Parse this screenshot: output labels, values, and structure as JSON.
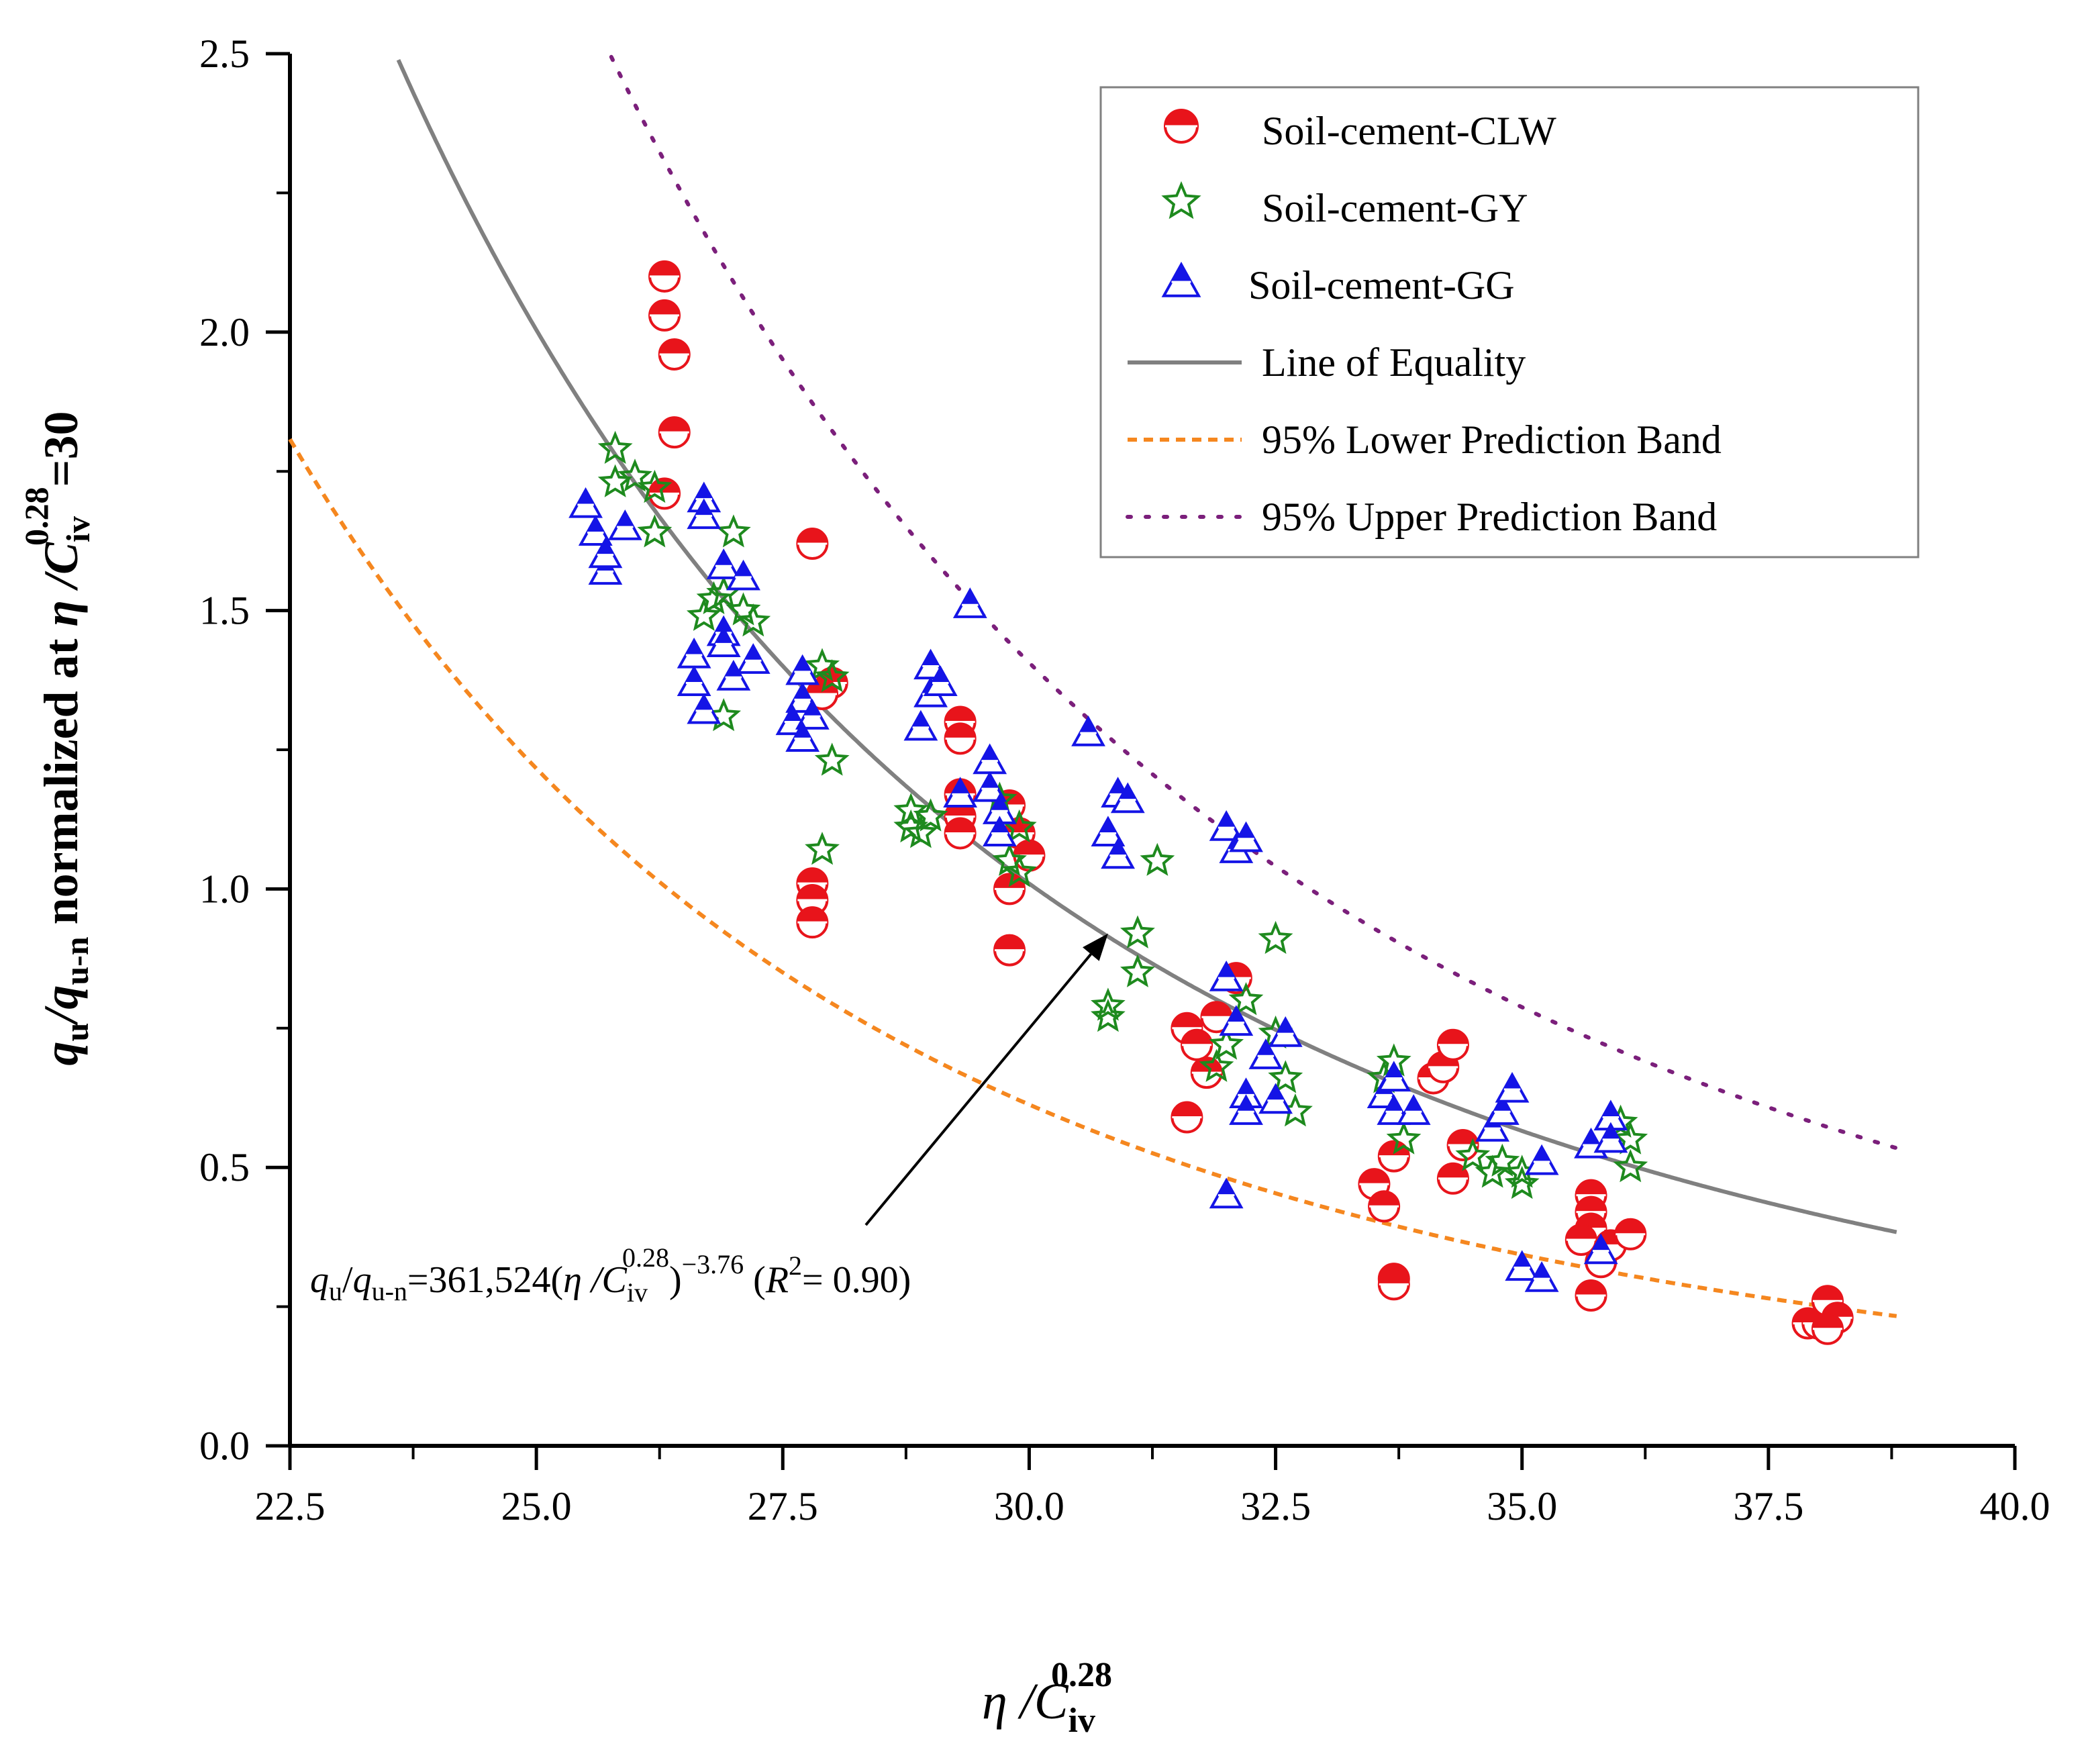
{
  "chart_data": {
    "type": "scatter",
    "xlabel": {
      "base": "η /C",
      "sub": "iv",
      "sup": "0.28"
    },
    "ylabel": {
      "q": "q",
      "q_sub": "u",
      "slash": "/",
      "q2": "q",
      "q2_sub": "u-n",
      "mid": " normalized at ",
      "eta": "η /C",
      "c_sub": "iv",
      "c_sup": "0.28",
      "tail": "=30"
    },
    "xlim": [
      22.5,
      40.0
    ],
    "ylim": [
      0.0,
      2.5
    ],
    "xticks": [
      "22.5",
      "25.0",
      "27.5",
      "30.0",
      "32.5",
      "35.0",
      "37.5",
      "40.0"
    ],
    "yticks": [
      "0.0",
      "0.5",
      "1.0",
      "1.5",
      "2.0",
      "2.5"
    ],
    "grid": false,
    "legend_position": "top-right",
    "series": [
      {
        "name": "Soil-cement-CLW",
        "marker": "half-filled-circle",
        "color": "#e8141b",
        "points": [
          [
            26.3,
            2.1
          ],
          [
            26.3,
            2.03
          ],
          [
            26.4,
            1.96
          ],
          [
            26.4,
            1.82
          ],
          [
            26.3,
            1.71
          ],
          [
            27.8,
            1.62
          ],
          [
            28.0,
            1.37
          ],
          [
            27.9,
            1.35
          ],
          [
            27.8,
            1.01
          ],
          [
            27.8,
            0.98
          ],
          [
            27.8,
            0.94
          ],
          [
            29.3,
            1.3
          ],
          [
            29.3,
            1.27
          ],
          [
            29.3,
            1.17
          ],
          [
            29.3,
            1.13
          ],
          [
            29.3,
            1.1
          ],
          [
            29.8,
            1.15
          ],
          [
            29.9,
            1.1
          ],
          [
            30.0,
            1.06
          ],
          [
            29.8,
            1.0
          ],
          [
            29.8,
            0.89
          ],
          [
            31.6,
            0.75
          ],
          [
            31.7,
            0.72
          ],
          [
            31.8,
            0.67
          ],
          [
            31.6,
            0.59
          ],
          [
            31.9,
            0.77
          ],
          [
            32.1,
            0.84
          ],
          [
            33.5,
            0.47
          ],
          [
            33.6,
            0.43
          ],
          [
            33.7,
            0.52
          ],
          [
            33.7,
            0.3
          ],
          [
            33.7,
            0.29
          ],
          [
            34.1,
            0.66
          ],
          [
            34.2,
            0.68
          ],
          [
            34.3,
            0.72
          ],
          [
            34.3,
            0.48
          ],
          [
            34.4,
            0.54
          ],
          [
            35.7,
            0.45
          ],
          [
            35.7,
            0.42
          ],
          [
            35.7,
            0.39
          ],
          [
            35.6,
            0.37
          ],
          [
            35.7,
            0.27
          ],
          [
            35.8,
            0.33
          ],
          [
            35.9,
            0.36
          ],
          [
            36.1,
            0.38
          ],
          [
            37.9,
            0.22
          ],
          [
            38.0,
            0.22
          ],
          [
            38.1,
            0.26
          ],
          [
            38.2,
            0.23
          ],
          [
            38.1,
            0.21
          ]
        ]
      },
      {
        "name": "Soil-cement-GY",
        "marker": "star",
        "color": "#1e8a1e",
        "points": [
          [
            25.8,
            1.79
          ],
          [
            25.8,
            1.73
          ],
          [
            26.0,
            1.74
          ],
          [
            26.2,
            1.72
          ],
          [
            26.2,
            1.64
          ],
          [
            26.7,
            1.49
          ],
          [
            26.8,
            1.52
          ],
          [
            26.9,
            1.53
          ],
          [
            27.0,
            1.64
          ],
          [
            27.1,
            1.5
          ],
          [
            27.2,
            1.48
          ],
          [
            26.9,
            1.31
          ],
          [
            27.9,
            1.4
          ],
          [
            28.0,
            1.38
          ],
          [
            27.9,
            1.07
          ],
          [
            28.0,
            1.23
          ],
          [
            28.8,
            1.14
          ],
          [
            28.8,
            1.11
          ],
          [
            28.9,
            1.1
          ],
          [
            29.0,
            1.13
          ],
          [
            29.7,
            1.16
          ],
          [
            29.8,
            1.05
          ],
          [
            29.9,
            1.03
          ],
          [
            29.9,
            1.11
          ],
          [
            30.8,
            0.79
          ],
          [
            30.8,
            0.77
          ],
          [
            31.1,
            0.92
          ],
          [
            31.1,
            0.85
          ],
          [
            31.3,
            1.05
          ],
          [
            31.9,
            0.68
          ],
          [
            32.0,
            0.72
          ],
          [
            32.2,
            0.8
          ],
          [
            32.5,
            0.91
          ],
          [
            32.5,
            0.74
          ],
          [
            32.6,
            0.66
          ],
          [
            32.7,
            0.6
          ],
          [
            33.6,
            0.66
          ],
          [
            33.7,
            0.69
          ],
          [
            33.8,
            0.55
          ],
          [
            34.5,
            0.52
          ],
          [
            34.7,
            0.49
          ],
          [
            34.8,
            0.51
          ],
          [
            35.0,
            0.47
          ],
          [
            35.0,
            0.49
          ],
          [
            36.0,
            0.58
          ],
          [
            36.1,
            0.55
          ],
          [
            36.1,
            0.5
          ]
        ]
      },
      {
        "name": "Soil-cement-GG",
        "marker": "half-filled-triangle",
        "color": "#1414e6",
        "points": [
          [
            25.5,
            1.69
          ],
          [
            25.6,
            1.64
          ],
          [
            25.7,
            1.57
          ],
          [
            25.7,
            1.6
          ],
          [
            25.9,
            1.65
          ],
          [
            26.7,
            1.7
          ],
          [
            26.7,
            1.67
          ],
          [
            26.9,
            1.58
          ],
          [
            26.6,
            1.42
          ],
          [
            26.6,
            1.37
          ],
          [
            26.7,
            1.32
          ],
          [
            26.9,
            1.46
          ],
          [
            26.9,
            1.44
          ],
          [
            27.1,
            1.56
          ],
          [
            27.0,
            1.38
          ],
          [
            27.2,
            1.41
          ],
          [
            27.7,
            1.39
          ],
          [
            27.7,
            1.34
          ],
          [
            27.6,
            1.3
          ],
          [
            27.8,
            1.31
          ],
          [
            27.7,
            1.27
          ],
          [
            29.0,
            1.4
          ],
          [
            29.0,
            1.35
          ],
          [
            29.1,
            1.37
          ],
          [
            28.9,
            1.29
          ],
          [
            29.3,
            1.17
          ],
          [
            29.4,
            1.51
          ],
          [
            29.6,
            1.23
          ],
          [
            29.6,
            1.18
          ],
          [
            29.7,
            1.14
          ],
          [
            29.7,
            1.1
          ],
          [
            30.6,
            1.28
          ],
          [
            30.9,
            1.17
          ],
          [
            30.8,
            1.1
          ],
          [
            30.9,
            1.06
          ],
          [
            31.0,
            1.16
          ],
          [
            32.0,
            1.11
          ],
          [
            32.1,
            1.07
          ],
          [
            32.2,
            1.09
          ],
          [
            32.0,
            0.84
          ],
          [
            32.1,
            0.76
          ],
          [
            32.2,
            0.63
          ],
          [
            32.2,
            0.6
          ],
          [
            32.4,
            0.7
          ],
          [
            32.5,
            0.62
          ],
          [
            32.6,
            0.74
          ],
          [
            32.0,
            0.45
          ],
          [
            33.6,
            0.63
          ],
          [
            33.7,
            0.66
          ],
          [
            33.7,
            0.6
          ],
          [
            33.9,
            0.6
          ],
          [
            34.7,
            0.57
          ],
          [
            34.8,
            0.6
          ],
          [
            34.9,
            0.64
          ],
          [
            35.0,
            0.32
          ],
          [
            35.2,
            0.51
          ],
          [
            35.2,
            0.3
          ],
          [
            35.7,
            0.54
          ],
          [
            35.9,
            0.59
          ],
          [
            35.9,
            0.55
          ],
          [
            35.8,
            0.35
          ]
        ]
      }
    ],
    "fit_curve": {
      "name": "Line of Equality",
      "color": "#808080",
      "a": 361524,
      "b": -3.76,
      "x_range": [
        23.6,
        38.8
      ]
    },
    "lower_band": {
      "name": "95% Lower Prediction Band",
      "color": "#f5871f",
      "factor": 0.607,
      "x_range": [
        22.5,
        38.8
      ]
    },
    "upper_band": {
      "name": "95% Upper Prediction Band",
      "color": "#7b1f7b",
      "factor": 1.393,
      "x_range": [
        22.5,
        38.8
      ]
    },
    "annotation": {
      "q": "q",
      "q_sub": "u",
      "slash": "/",
      "q2": "q",
      "q2_sub": "u-n",
      "eq": "=361,524(",
      "eta": "η /C",
      "c_sub": "iv",
      "c_sup": "0.28",
      "close": ")",
      "exp": "−3.76",
      "r_open": " (",
      "r": "R",
      "r_sup": "2",
      "r_val": "= 0.90)",
      "arrow_to": [
        30.8,
        0.92
      ]
    }
  }
}
